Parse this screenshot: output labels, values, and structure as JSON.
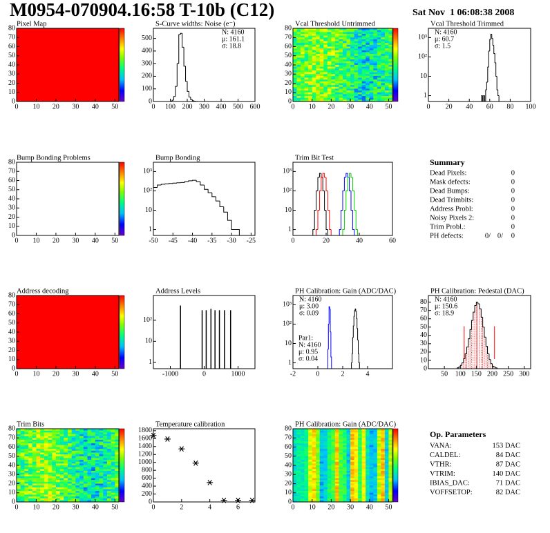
{
  "header": {
    "title": "M0954-070904.16:58 T-10b (C12)",
    "date": "Sat Nov  1 06:08:38 2008"
  },
  "chart_data": [
    {
      "type": "heatmap",
      "title": "Pixel Map",
      "xlim": [
        0,
        52
      ],
      "ylim": [
        0,
        80
      ],
      "xticks": [
        0,
        10,
        20,
        30,
        40,
        50
      ],
      "yticks": [
        0,
        10,
        20,
        30,
        40,
        50,
        60,
        70,
        80
      ],
      "fill": "#ff0000",
      "colorbar": true
    },
    {
      "type": "histogram",
      "title": "S-Curve widths: Noise (e⁻)",
      "xlim": [
        0,
        600
      ],
      "ylim": [
        0,
        580
      ],
      "xticks": [
        0,
        100,
        200,
        300,
        400,
        500,
        600
      ],
      "yticks": [
        0,
        100,
        200,
        300,
        400,
        500
      ],
      "log_y": false,
      "series": [
        {
          "color": "#000000",
          "bins": [
            100,
            110,
            120,
            130,
            140,
            150,
            160,
            170,
            180,
            190,
            200,
            210,
            220,
            230,
            240,
            250,
            260
          ],
          "values": [
            2,
            10,
            40,
            120,
            300,
            530,
            540,
            430,
            280,
            160,
            80,
            35,
            15,
            6,
            2,
            1
          ]
        }
      ],
      "stats_corner": "top-right",
      "stats": [
        {
          "text": "N: 4160",
          "color": "#000000"
        },
        {
          "text": "μ: 161.1",
          "color": "#000000"
        },
        {
          "text": "σ: 18.8",
          "color": "#000000"
        }
      ]
    },
    {
      "type": "heatmap",
      "title": "Vcal Threshold Untrimmed",
      "xlim": [
        0,
        52
      ],
      "ylim": [
        0,
        80
      ],
      "xticks": [
        0,
        10,
        20,
        30,
        40,
        50
      ],
      "yticks": [
        0,
        10,
        20,
        30,
        40,
        50,
        60,
        70,
        80
      ],
      "pattern": "noise",
      "colorbar": true
    },
    {
      "type": "histogram",
      "title": "Vcal Threshold Trimmed",
      "xlim": [
        0,
        100
      ],
      "ylim": [
        0.5,
        3000
      ],
      "xticks": [
        0,
        20,
        40,
        60,
        80,
        100
      ],
      "yticks": [
        1,
        10,
        {
          "value": 100,
          "label": "10²"
        },
        {
          "value": 1000,
          "label": "10³"
        }
      ],
      "log_y": true,
      "series": [
        {
          "color": "#000000",
          "bins": [
            50,
            51,
            52,
            53,
            54,
            55,
            56,
            57,
            58,
            59,
            60,
            61,
            62,
            63,
            64,
            65,
            66,
            67,
            68,
            69,
            70
          ],
          "values": [
            0,
            0,
            1,
            0,
            1,
            0,
            2,
            5,
            30,
            200,
            800,
            1500,
            900,
            400,
            150,
            50,
            10,
            2,
            1,
            0
          ]
        }
      ],
      "stats_corner": "top-left",
      "stats": [
        {
          "text": "N: 4160",
          "color": "#000000"
        },
        {
          "text": "μ: 60.7",
          "color": "#000000"
        },
        {
          "text": "σ:  1.5",
          "color": "#000000"
        }
      ]
    },
    {
      "type": "heatmap",
      "title": "Bump Bonding Problems",
      "xlim": [
        0,
        52
      ],
      "ylim": [
        0,
        80
      ],
      "xticks": [
        0,
        10,
        20,
        30,
        40,
        50
      ],
      "yticks": [
        0,
        10,
        20,
        30,
        40,
        50,
        60,
        70,
        80
      ],
      "fill": "#ffffff",
      "colorbar": true
    },
    {
      "type": "histogram",
      "title": "Bump Bonding",
      "xlim": [
        -50,
        -24
      ],
      "ylim": [
        0.5,
        3000
      ],
      "xticks": [
        -50,
        -45,
        -40,
        -35,
        -30,
        -25
      ],
      "yticks": [
        1,
        10,
        {
          "value": 100,
          "label": "10²"
        },
        {
          "value": 1000,
          "label": "10³"
        }
      ],
      "log_y": true,
      "series": [
        {
          "color": "#000000",
          "bins": [
            -50,
            -49,
            -48,
            -47,
            -46,
            -45,
            -44,
            -43,
            -42,
            -41,
            -40,
            -39,
            -38,
            -37,
            -36,
            -35,
            -34,
            -33,
            -32,
            -31,
            -30,
            -29,
            -28
          ],
          "values": [
            150,
            200,
            220,
            230,
            240,
            250,
            260,
            270,
            300,
            330,
            350,
            300,
            200,
            120,
            80,
            50,
            30,
            15,
            8,
            3,
            1,
            1
          ]
        }
      ]
    },
    {
      "type": "histogram",
      "title": "Trim Bit Test",
      "xlim": [
        0,
        60
      ],
      "ylim": [
        0.5,
        3000
      ],
      "xticks": [
        0,
        20,
        40,
        60
      ],
      "yticks": [
        1,
        10,
        {
          "value": 100,
          "label": "10²"
        },
        {
          "value": 1000,
          "label": "10³"
        }
      ],
      "log_y": true,
      "series": [
        {
          "color": "#000000",
          "bins": [
            10,
            11,
            12,
            13,
            14,
            15,
            16,
            17,
            18,
            19,
            20,
            21,
            22,
            23,
            24,
            25,
            26,
            27,
            28,
            29,
            30,
            31,
            32,
            33,
            34,
            35,
            36,
            37,
            38,
            39,
            40
          ],
          "values": [
            0,
            0,
            1,
            10,
            100,
            500,
            800,
            500,
            100,
            10,
            1,
            0,
            0,
            0,
            0,
            0,
            0,
            0,
            0,
            0,
            0,
            0,
            0,
            0,
            0,
            0,
            0,
            0,
            0,
            0
          ]
        },
        {
          "color": "#ff0000",
          "bins": [
            10,
            11,
            12,
            13,
            14,
            15,
            16,
            17,
            18,
            19,
            20,
            21,
            22,
            23,
            24,
            25,
            26,
            27,
            28,
            29,
            30,
            31,
            32,
            33,
            34,
            35,
            36,
            37,
            38,
            39,
            40
          ],
          "values": [
            0,
            0,
            0,
            0,
            1,
            10,
            100,
            500,
            800,
            500,
            100,
            10,
            1,
            0,
            0,
            0,
            0,
            0,
            0,
            0,
            0,
            0,
            0,
            0,
            0,
            0,
            0,
            0,
            0,
            0
          ]
        },
        {
          "color": "#0000ff",
          "bins": [
            10,
            11,
            12,
            13,
            14,
            15,
            16,
            17,
            18,
            19,
            20,
            21,
            22,
            23,
            24,
            25,
            26,
            27,
            28,
            29,
            30,
            31,
            32,
            33,
            34,
            35,
            36,
            37,
            38,
            39,
            40
          ],
          "values": [
            0,
            0,
            0,
            0,
            0,
            0,
            0,
            0,
            0,
            0,
            0,
            0,
            0,
            0,
            0,
            0,
            0,
            0,
            1,
            10,
            100,
            500,
            800,
            500,
            100,
            10,
            1,
            0,
            0,
            0
          ]
        },
        {
          "color": "#00cc00",
          "bins": [
            10,
            11,
            12,
            13,
            14,
            15,
            16,
            17,
            18,
            19,
            20,
            21,
            22,
            23,
            24,
            25,
            26,
            27,
            28,
            29,
            30,
            31,
            32,
            33,
            34,
            35,
            36,
            37,
            38,
            39,
            40
          ],
          "values": [
            0,
            0,
            0,
            0,
            0,
            0,
            0,
            0,
            0,
            0,
            0,
            0,
            0,
            0,
            0,
            0,
            0,
            0,
            0,
            0,
            1,
            10,
            100,
            500,
            800,
            500,
            100,
            10,
            1,
            0
          ]
        }
      ]
    },
    {
      "type": "heatmap",
      "title": "Address decoding",
      "xlim": [
        0,
        52
      ],
      "ylim": [
        0,
        80
      ],
      "xticks": [
        0,
        10,
        20,
        30,
        40,
        50
      ],
      "yticks": [
        0,
        10,
        20,
        30,
        40,
        50,
        60,
        70,
        80
      ],
      "fill": "#ff0000",
      "colorbar": true
    },
    {
      "type": "spikes",
      "title": "Address Levels",
      "xlim": [
        -1500,
        1500
      ],
      "ylim": [
        0.5,
        1500
      ],
      "xticks": [
        -1000,
        0,
        1000
      ],
      "yticks": [
        1,
        10,
        {
          "value": 100,
          "label": "10²"
        }
      ],
      "log_y": true,
      "color": "#000000",
      "x": [
        -700,
        -60,
        60,
        200,
        320,
        450,
        600,
        780
      ],
      "values": [
        500,
        300,
        300,
        350,
        300,
        300,
        300,
        300
      ]
    },
    {
      "type": "histogram",
      "title": "PH Calibration: Gain (ADC/DAC)",
      "xlim": [
        -2,
        6
      ],
      "ylim": [
        0.5,
        3000
      ],
      "xticks": [
        -2,
        0,
        2,
        4
      ],
      "yticks": [
        1,
        10,
        {
          "value": 100,
          "label": "10²"
        },
        {
          "value": 1000,
          "label": "10³"
        }
      ],
      "log_y": true,
      "series": [
        {
          "color": "#000000",
          "bins": [
            2.7,
            2.75,
            2.8,
            2.85,
            2.9,
            2.95,
            3.0,
            3.05,
            3.1,
            3.15,
            3.2,
            3.25,
            3.3,
            3.35
          ],
          "values": [
            1,
            3,
            20,
            80,
            250,
            500,
            600,
            450,
            200,
            60,
            15,
            3,
            1
          ]
        },
        {
          "color": "#0000ff",
          "bins": [
            0.8,
            0.85,
            0.9,
            0.95,
            1.0,
            1.05,
            1.1
          ],
          "values": [
            5,
            100,
            800,
            600,
            40,
            2
          ]
        }
      ],
      "stats_corner": "top-left",
      "stats": [
        {
          "text": "N: 4160",
          "color": "#000000"
        },
        {
          "text": "μ: 3.00",
          "color": "#000000"
        },
        {
          "text": "σ: 0.09",
          "color": "#000000"
        }
      ],
      "fit": [
        {
          "text": "Par1:",
          "color": "#0000ff"
        },
        {
          "text": "N: 4160",
          "color": "#0000ff"
        },
        {
          "text": "μ: 0.95",
          "color": "#0000ff"
        },
        {
          "text": "σ: 0.04",
          "color": "#0000ff"
        }
      ]
    },
    {
      "type": "histogram",
      "title": "PH Calibration: Pedestal (DAC)",
      "xlim": [
        0,
        320
      ],
      "ylim": [
        0,
        88
      ],
      "xticks": [
        50,
        100,
        150,
        200,
        250,
        300
      ],
      "yticks": [
        0,
        10,
        20,
        30,
        40,
        50,
        60,
        70,
        80
      ],
      "log_y": false,
      "hatch": "#ff0000",
      "series": [
        {
          "color": "#000000",
          "bins": [
            90,
            95,
            100,
            105,
            110,
            115,
            120,
            125,
            130,
            135,
            140,
            145,
            150,
            155,
            160,
            165,
            170,
            175,
            180,
            185,
            190,
            195,
            200,
            205,
            210,
            215,
            220
          ],
          "values": [
            1,
            2,
            4,
            7,
            12,
            18,
            26,
            36,
            47,
            58,
            68,
            76,
            80,
            78,
            72,
            62,
            50,
            38,
            27,
            18,
            11,
            6,
            3,
            2,
            1,
            0
          ]
        }
      ],
      "markers": [
        112,
        207
      ],
      "marker_color": "#ff0000",
      "stats_corner": "top-left",
      "stats": [
        {
          "text": "N: 4160",
          "color": "#000000"
        },
        {
          "text": "μ: 150.6",
          "color": "#ff0000"
        },
        {
          "text": "σ: 18.9",
          "color": "#ff0000"
        }
      ]
    },
    {
      "type": "heatmap",
      "title": "Trim Bits",
      "xlim": [
        0,
        52
      ],
      "ylim": [
        0,
        80
      ],
      "xticks": [
        0,
        10,
        20,
        30,
        40,
        50
      ],
      "yticks": [
        0,
        10,
        20,
        30,
        40,
        50,
        60,
        70,
        80
      ],
      "pattern": "noise",
      "colorbar": true
    },
    {
      "type": "scatter",
      "title": "Temperature calibration",
      "xlim": [
        0,
        7.2
      ],
      "ylim": [
        0,
        1850
      ],
      "xticks": [
        0,
        2,
        4,
        6
      ],
      "yticks": [
        0,
        200,
        400,
        600,
        800,
        1000,
        1200,
        1400,
        1600,
        1800
      ],
      "log_y": false,
      "color": "#000000",
      "x": [
        0,
        1,
        2,
        3,
        4,
        5,
        6,
        7
      ],
      "values": [
        1680,
        1590,
        1340,
        980,
        490,
        40,
        40,
        40
      ]
    },
    {
      "type": "heatmap",
      "title": "PH Calibration: Gain (ADC/DAC)",
      "xlim": [
        0,
        52
      ],
      "ylim": [
        0,
        80
      ],
      "xticks": [
        0,
        10,
        20,
        30,
        40,
        50
      ],
      "yticks": [
        0,
        10,
        20,
        30,
        40,
        50,
        60,
        70,
        80
      ],
      "pattern": "columns",
      "colorbar": true
    }
  ],
  "summary": {
    "title": "Summary",
    "rows": [
      [
        "Dead Pixels:",
        "0"
      ],
      [
        "Mask defects:",
        "0"
      ],
      [
        "Dead Bumps:",
        "0"
      ],
      [
        "Dead Trimbits:",
        "0"
      ],
      [
        "Address Probl:",
        "0"
      ],
      [
        "Noisy Pixels 2:",
        "0"
      ],
      [
        "Trim Probl.:",
        "0"
      ]
    ],
    "ph_defects": {
      "label": "PH defects:",
      "values": [
        "0/",
        "0/",
        "0"
      ],
      "colors": [
        "#000000",
        "#ff0000",
        "#0000ff"
      ]
    }
  },
  "op_parameters": {
    "title": "Op. Parameters",
    "rows": [
      [
        "VANA:",
        "153 DAC"
      ],
      [
        "CALDEL:",
        "84 DAC"
      ],
      [
        "VTHR:",
        "87 DAC"
      ],
      [
        "VTRIM:",
        "140 DAC"
      ],
      [
        "IBIAS_DAC:",
        "71 DAC"
      ],
      [
        "VOFFSETOP:",
        "82 DAC"
      ]
    ]
  }
}
